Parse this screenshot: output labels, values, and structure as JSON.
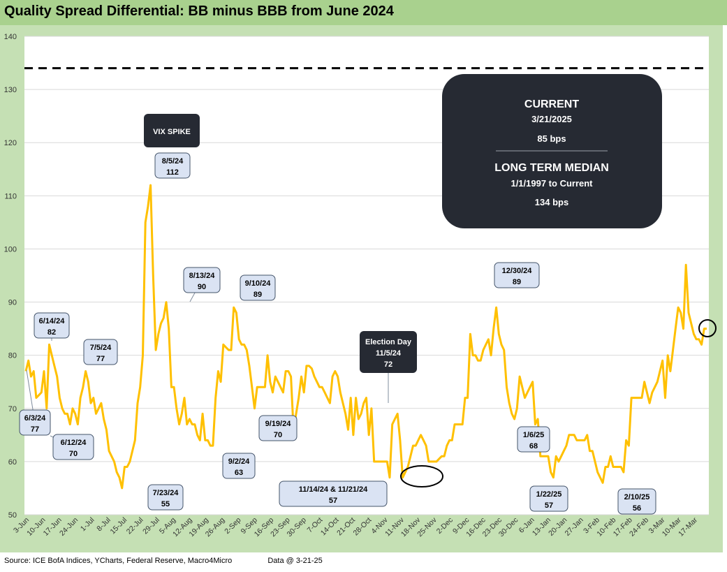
{
  "title": "Quality Spread Differential: BB minus BBB from June 2024",
  "footer": {
    "source": "Source: ICE BofA Indices, YCharts, Federal Reserve, Macro4Micro",
    "data_note": "Data @ 3-21-25"
  },
  "colors": {
    "line": "#ffc000",
    "median_line": "#000000",
    "callout_fill": "#dae3f3",
    "dark_box": "#262a33",
    "title_bar": "#a9d18e",
    "plot_border": "#c5e0b4"
  },
  "info_box": {
    "current_label": "CURRENT",
    "current_date": "3/21/2025",
    "current_value": "85 bps",
    "median_label": "LONG TERM MEDIAN",
    "median_range": "1/1/1997 to Current",
    "median_value": "134 bps"
  },
  "chart_data": {
    "type": "line",
    "title": "Quality Spread Differential: BB minus BBB from June 2024",
    "ylim": [
      50,
      140
    ],
    "yticks": [
      50,
      60,
      70,
      80,
      90,
      100,
      110,
      120,
      130,
      140
    ],
    "xtick_labels": [
      "3-Jun",
      "10-Jun",
      "17-Jun",
      "24-Jun",
      "1-Jul",
      "8-Jul",
      "15-Jul",
      "22-Jul",
      "29-Jul",
      "5-Aug",
      "12-Aug",
      "19-Aug",
      "26-Aug",
      "2-Sep",
      "9-Sep",
      "16-Sep",
      "23-Sep",
      "30-Sep",
      "7-Oct",
      "14-Oct",
      "21-Oct",
      "28-Oct",
      "4-Nov",
      "11-Nov",
      "18-Nov",
      "25-Nov",
      "2-Dec",
      "9-Dec",
      "16-Dec",
      "23-Dec",
      "30-Dec",
      "6-Jan",
      "13-Jan",
      "20-Jan",
      "27-Jan",
      "3-Feb",
      "10-Feb",
      "17-Feb",
      "24-Feb",
      "3-Mar",
      "10-Mar",
      "17-Mar"
    ],
    "median_value": 134,
    "grid": true,
    "series": [
      {
        "values": [
          77,
          79,
          76,
          77,
          72,
          72.5,
          73,
          77,
          70,
          82,
          80,
          78,
          76,
          72,
          70,
          69,
          69,
          67,
          70,
          69,
          67,
          72,
          74,
          77,
          75,
          71,
          72,
          69,
          70,
          71,
          68,
          66,
          62,
          61,
          60,
          58,
          57,
          55,
          59,
          59,
          60,
          62,
          64,
          71,
          74,
          80,
          105,
          108,
          112,
          95,
          81,
          84,
          86,
          87,
          90,
          85,
          74,
          74,
          70,
          67,
          69,
          72,
          67,
          68,
          67,
          67,
          65,
          64,
          69,
          64,
          64,
          63,
          63,
          72,
          77,
          75,
          82,
          81.5,
          81,
          81,
          89,
          88,
          83,
          82,
          82,
          81,
          78,
          74,
          70,
          74,
          74,
          74,
          74,
          80,
          75,
          73,
          76,
          75,
          74,
          73,
          77,
          77,
          76,
          66,
          69,
          72,
          76,
          73,
          78,
          78,
          77.5,
          76,
          75,
          74,
          74,
          73,
          72,
          71,
          76,
          77,
          76,
          73,
          71,
          69,
          66,
          72,
          65,
          72,
          68,
          69,
          71,
          72,
          65,
          70,
          60,
          60,
          60,
          60,
          60,
          60,
          57,
          67,
          68,
          69,
          64,
          57,
          58,
          59,
          61,
          63,
          63,
          64,
          65,
          64,
          63,
          60,
          60,
          60,
          60,
          60.5,
          61,
          61,
          63,
          64,
          64,
          67,
          67,
          67,
          67,
          72,
          72,
          84,
          80,
          80,
          79,
          79,
          81,
          82,
          83,
          80,
          85,
          89,
          84,
          82,
          81,
          74,
          71,
          69,
          68,
          70,
          76,
          74,
          72,
          73,
          74,
          75,
          67,
          68,
          61,
          61,
          61,
          61,
          58,
          57,
          61,
          60,
          61,
          62,
          63,
          65,
          65,
          65,
          64,
          64,
          64,
          64,
          65,
          62,
          62,
          60,
          58,
          57,
          56,
          59,
          59,
          61,
          59,
          59,
          59,
          59,
          58,
          64,
          63,
          72,
          72,
          72,
          72,
          72,
          75,
          73,
          71,
          73,
          74,
          75,
          77,
          79,
          72,
          80,
          77,
          81,
          85,
          89,
          88,
          85,
          97,
          88,
          86,
          84,
          83,
          83,
          82,
          85,
          85
        ]
      }
    ],
    "annotations": [
      {
        "label": "6/14/24",
        "value": "82"
      },
      {
        "label": "7/5/24",
        "value": "77"
      },
      {
        "label": "6/3/24",
        "value": "77"
      },
      {
        "label": "6/12/24",
        "value": "70"
      },
      {
        "label": "7/23/24",
        "value": "55"
      },
      {
        "label": "8/5/24",
        "value": "112"
      },
      {
        "label": "8/13/24",
        "value": "90"
      },
      {
        "label": "9/2/24",
        "value": "63"
      },
      {
        "label": "9/10/24",
        "value": "89"
      },
      {
        "label": "9/19/24",
        "value": "70"
      },
      {
        "label": "11/14/24 & 11/21/24",
        "value": "57"
      },
      {
        "label": "12/30/24",
        "value": "89"
      },
      {
        "label": "1/6/25",
        "value": "68"
      },
      {
        "label": "1/22/25",
        "value": "57"
      },
      {
        "label": "2/10/25",
        "value": "56"
      }
    ],
    "dark_annotations": [
      {
        "label": "VIX SPIKE"
      },
      {
        "label": "Election Day",
        "date": "11/5/24",
        "value": "72"
      }
    ]
  }
}
